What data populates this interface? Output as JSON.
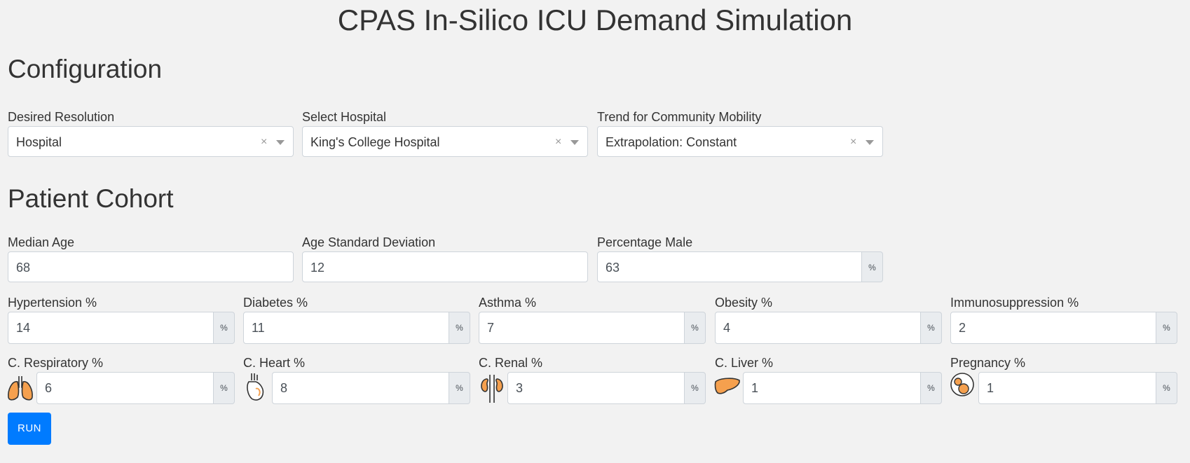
{
  "title": "CPAS In-Silico ICU Demand Simulation",
  "configuration": {
    "heading": "Configuration",
    "resolution": {
      "label": "Desired Resolution",
      "value": "Hospital"
    },
    "hospital": {
      "label": "Select Hospital",
      "value": "King's College Hospital"
    },
    "mobility": {
      "label": "Trend for Community Mobility",
      "value": "Extrapolation: Constant"
    },
    "clear_symbol": "×"
  },
  "cohort": {
    "heading": "Patient Cohort",
    "percent_symbol": "%",
    "median_age": {
      "label": "Median Age",
      "value": "68"
    },
    "age_sd": {
      "label": "Age Standard Deviation",
      "value": "12"
    },
    "pct_male": {
      "label": "Percentage Male",
      "value": "63"
    },
    "hypertension": {
      "label": "Hypertension %",
      "value": "14"
    },
    "diabetes": {
      "label": "Diabetes %",
      "value": "11"
    },
    "asthma": {
      "label": "Asthma %",
      "value": "7"
    },
    "obesity": {
      "label": "Obesity %",
      "value": "4"
    },
    "immuno": {
      "label": "Immunosuppression %",
      "value": "2"
    },
    "respiratory": {
      "label": "C. Respiratory %",
      "value": "6",
      "icon": "lungs-icon"
    },
    "heart": {
      "label": "C. Heart %",
      "value": "8",
      "icon": "heart-icon"
    },
    "renal": {
      "label": "C. Renal %",
      "value": "3",
      "icon": "kidneys-icon"
    },
    "liver": {
      "label": "C. Liver %",
      "value": "1",
      "icon": "liver-icon"
    },
    "pregnancy": {
      "label": "Pregnancy %",
      "value": "1",
      "icon": "pregnancy-icon"
    }
  },
  "run_label": "RUN",
  "colors": {
    "accent": "#007bff",
    "icon_fill": "#f5a04e",
    "background": "#f2f2f2"
  }
}
